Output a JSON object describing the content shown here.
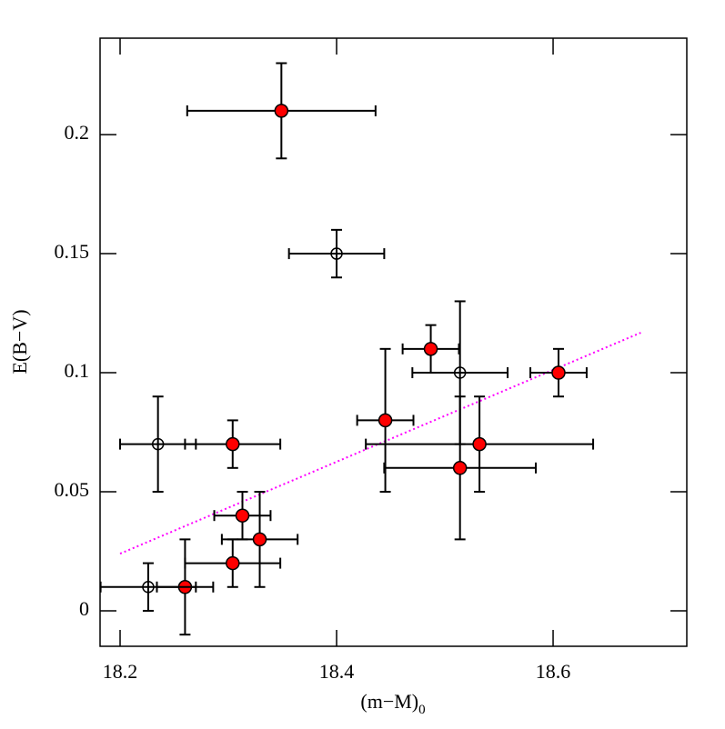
{
  "chart_data": {
    "type": "scatter",
    "x_label": "(m−M)",
    "x_label_subscript": "0",
    "y_label": "E(B−V)",
    "xlim": [
      18.1815,
      18.7235
    ],
    "ylim": [
      -0.0149,
      0.2405
    ],
    "xticks": [
      18.2,
      18.4,
      18.6
    ],
    "yticks": [
      0,
      0.05,
      0.1,
      0.15,
      0.2
    ],
    "series": [
      {
        "marker": "filled",
        "color": "#ff0000",
        "x": [
          18.349,
          18.487,
          18.605,
          18.445,
          18.532,
          18.514,
          18.304,
          18.313,
          18.329,
          18.304,
          18.26
        ],
        "values": [
          0.21,
          0.11,
          0.1,
          0.08,
          0.07,
          0.06,
          0.07,
          0.04,
          0.03,
          0.02,
          0.01
        ],
        "xerr": [
          0.087,
          0.026,
          0.026,
          0.026,
          0.105,
          0.07,
          0.044,
          0.026,
          0.035,
          0.044,
          0.026
        ],
        "yerr": [
          0.02,
          0.01,
          0.01,
          0.03,
          0.02,
          0.03,
          0.01,
          0.01,
          0.02,
          0.01,
          0.02
        ]
      },
      {
        "marker": "open",
        "color": "#000000",
        "x": [
          18.4,
          18.514,
          18.235,
          18.226
        ],
        "values": [
          0.15,
          0.1,
          0.07,
          0.01
        ],
        "xerr": [
          0.044,
          0.044,
          0.035,
          0.044
        ],
        "yerr": [
          0.01,
          0.03,
          0.02,
          0.01
        ]
      }
    ],
    "fit_line": {
      "color": "#ff00ff",
      "x": [
        18.2,
        18.681
      ],
      "values": [
        0.024,
        0.1168
      ]
    }
  }
}
